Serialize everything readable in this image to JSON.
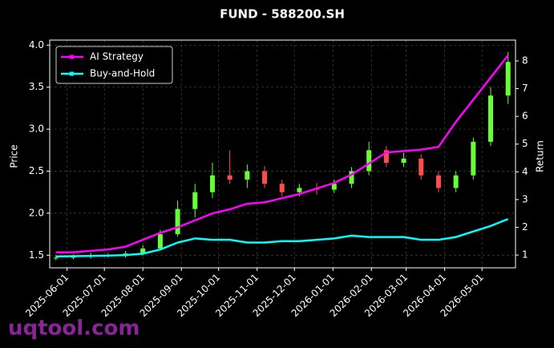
{
  "chart_data": {
    "type": "candlestick",
    "title": "FUND - 588200.SH",
    "ylabel": "Price",
    "y2label": "Return",
    "watermark": "uqtool.com",
    "x": [
      "2025-05-23",
      "2025-06-06",
      "2025-06-20",
      "2025-07-04",
      "2025-07-18",
      "2025-08-01",
      "2025-08-15",
      "2025-08-29",
      "2025-09-12",
      "2025-09-26",
      "2025-10-10",
      "2025-10-24",
      "2025-11-07",
      "2025-11-21",
      "2025-12-05",
      "2025-12-19",
      "2026-01-02",
      "2026-01-16",
      "2026-01-30",
      "2026-02-13",
      "2026-02-27",
      "2026-03-13",
      "2026-03-27",
      "2026-04-10",
      "2026-04-24",
      "2026-05-08",
      "2026-05-22"
    ],
    "open": [
      1.46,
      1.47,
      1.48,
      1.5,
      1.49,
      1.52,
      1.58,
      1.75,
      2.05,
      2.25,
      2.45,
      2.4,
      2.5,
      2.35,
      2.25,
      2.3,
      2.28,
      2.35,
      2.5,
      2.75,
      2.6,
      2.65,
      2.45,
      2.3,
      2.45,
      2.85,
      3.4
    ],
    "high": [
      1.5,
      1.51,
      1.53,
      1.53,
      1.55,
      1.62,
      1.8,
      2.15,
      2.35,
      2.6,
      2.75,
      2.58,
      2.56,
      2.4,
      2.35,
      2.36,
      2.4,
      2.55,
      2.85,
      2.8,
      2.72,
      2.7,
      2.5,
      2.5,
      2.9,
      3.5,
      3.92
    ],
    "low": [
      1.44,
      1.45,
      1.46,
      1.47,
      1.47,
      1.5,
      1.56,
      1.72,
      1.95,
      2.18,
      2.35,
      2.3,
      2.3,
      2.2,
      2.2,
      2.22,
      2.24,
      2.3,
      2.45,
      2.55,
      2.55,
      2.4,
      2.25,
      2.25,
      2.4,
      2.8,
      3.3
    ],
    "close": [
      1.47,
      1.48,
      1.5,
      1.49,
      1.52,
      1.58,
      1.75,
      2.05,
      2.25,
      2.45,
      2.4,
      2.5,
      2.35,
      2.25,
      2.3,
      2.28,
      2.35,
      2.5,
      2.75,
      2.6,
      2.65,
      2.45,
      2.3,
      2.45,
      2.85,
      3.4,
      3.8
    ],
    "up_color": "#66ff33",
    "down_color": "#ff4d4d",
    "series": [
      {
        "name": "AI Strategy",
        "color": "#ff00ff",
        "axis": "y2",
        "values": [
          1.1,
          1.1,
          1.15,
          1.2,
          1.3,
          1.55,
          1.8,
          2.0,
          2.25,
          2.5,
          2.65,
          2.85,
          2.9,
          3.05,
          3.2,
          3.4,
          3.6,
          3.9,
          4.3,
          4.7,
          4.75,
          4.8,
          4.9,
          5.8,
          6.6,
          7.4,
          8.2
        ]
      },
      {
        "name": "Buy-and-Hold",
        "color": "#00ffff",
        "axis": "y2",
        "values": [
          0.95,
          0.96,
          0.97,
          0.98,
          1.0,
          1.05,
          1.2,
          1.45,
          1.6,
          1.55,
          1.55,
          1.45,
          1.45,
          1.5,
          1.5,
          1.55,
          1.6,
          1.7,
          1.65,
          1.65,
          1.65,
          1.55,
          1.55,
          1.65,
          1.85,
          2.05,
          2.3
        ]
      }
    ],
    "xlim": [
      "2025-05-18",
      "2026-05-28"
    ],
    "xticks": [
      "2025-06-01",
      "2025-07-01",
      "2025-08-01",
      "2025-09-01",
      "2025-10-01",
      "2025-11-01",
      "2025-12-01",
      "2026-01-01",
      "2026-02-01",
      "2026-03-01",
      "2026-04-01",
      "2026-05-01"
    ],
    "ylim": [
      1.35,
      4.06
    ],
    "yticks": [
      1.5,
      {
        "value": 2,
        "label": "2.0"
      },
      2.5,
      {
        "value": 3,
        "label": "3.0"
      },
      3.5,
      {
        "value": 4,
        "label": "4.0"
      }
    ],
    "y2lim": [
      0.54,
      8.75
    ],
    "y2ticks": [
      1,
      2,
      3,
      4,
      5,
      6,
      7,
      8
    ],
    "grid": true,
    "legend": "upper left"
  }
}
